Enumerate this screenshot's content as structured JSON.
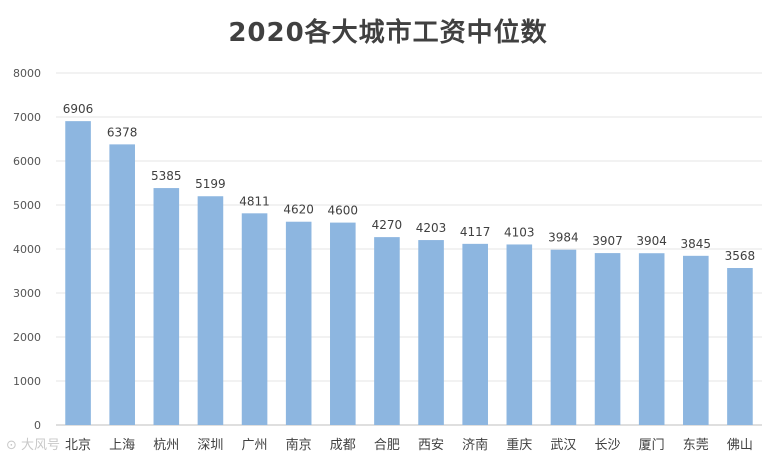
{
  "chart_data": {
    "type": "bar",
    "title": "2020各大城市工资中位数",
    "categories": [
      "北京",
      "上海",
      "杭州",
      "深圳",
      "广州",
      "南京",
      "成都",
      "合肥",
      "西安",
      "济南",
      "重庆",
      "武汉",
      "长沙",
      "厦门",
      "东莞",
      "佛山"
    ],
    "values": [
      6906,
      6378,
      5385,
      5199,
      4811,
      4620,
      4600,
      4270,
      4203,
      4117,
      4103,
      3984,
      3907,
      3904,
      3845,
      3568
    ],
    "xlabel": "",
    "ylabel": "",
    "ylim": [
      0,
      8000
    ],
    "yticks": [
      0,
      1000,
      2000,
      3000,
      4000,
      5000,
      6000,
      7000,
      8000
    ],
    "grid": true,
    "bar_color": "#8db6e0",
    "legend": "none"
  },
  "watermark": "⊙ 大风号"
}
